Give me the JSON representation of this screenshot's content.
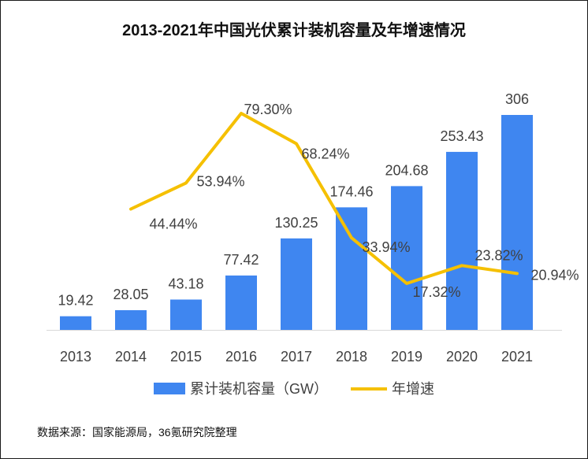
{
  "chart_data": {
    "type": "bar",
    "title": "2013-2021年中国光伏累计装机容量及年增速情况",
    "categories": [
      "2013",
      "2014",
      "2015",
      "2016",
      "2017",
      "2018",
      "2019",
      "2020",
      "2021"
    ],
    "series": [
      {
        "name": "累计装机容量（GW）",
        "type": "bar",
        "color": "#3f86f0",
        "values": [
          19.42,
          28.05,
          43.18,
          77.42,
          130.25,
          174.46,
          204.68,
          253.43,
          306
        ],
        "labels": [
          "19.42",
          "28.05",
          "43.18",
          "77.42",
          "130.25",
          "174.46",
          "204.68",
          "253.43",
          "306"
        ]
      },
      {
        "name": "年增速",
        "type": "line",
        "color": "#f5c000",
        "values": [
          null,
          44.44,
          53.94,
          79.3,
          68.24,
          33.94,
          17.32,
          23.82,
          20.94
        ],
        "labels": [
          null,
          "44.44%",
          "53.94%",
          "79.30%",
          "68.24%",
          "33.94%",
          "17.32%",
          "23.82%",
          "20.94%"
        ]
      }
    ],
    "ylim_bar": [
      0,
      306
    ],
    "ylim_line": [
      0,
      79.3
    ],
    "legend_position": "bottom",
    "source": "数据来源：国家能源局，36氪研究院整理"
  }
}
